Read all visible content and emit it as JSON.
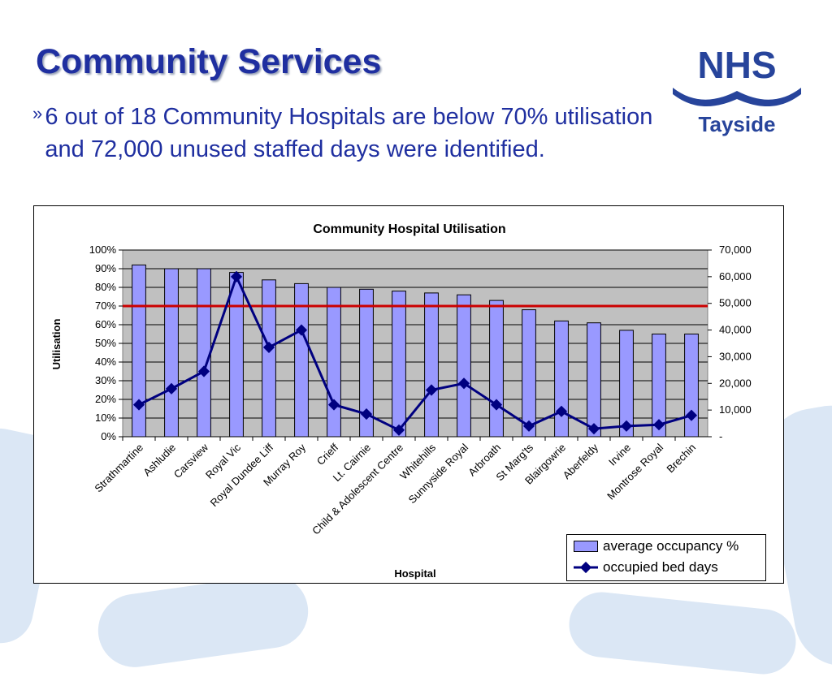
{
  "slide": {
    "title": "Community Services",
    "bullet_mark": "»",
    "bullet": "6 out of 18 Community Hospitals are below 70% utilisation and 72,000 unused staffed days were identified.",
    "logo_top": "NHS",
    "logo_bottom": "Tayside"
  },
  "colors": {
    "title": "#1f2fa0",
    "bars": "#9999ff",
    "line": "#000080",
    "threshold": "#cc0000",
    "plot_bg": "#c0c0c0",
    "logo": "#27449b"
  },
  "chart_data": {
    "type": "bar",
    "title": "Community Hospital Utilisation",
    "xlabel": "Hospital",
    "ylabel": "Utilisation",
    "categories": [
      "Strathmartine",
      "Ashludie",
      "Carsview",
      "Royal Vic",
      "Royal Dundee Liff",
      "Murray Roy",
      "Crieff",
      "Lt. Cairnie",
      "Child & Adolescent Centre",
      "Whitehills",
      "Sunnyside Royal",
      "Arbroath",
      "St Marg'ts",
      "Blairgowrie",
      "Aberfeldy",
      "Irvine",
      "Montrose Royal",
      "Brechin"
    ],
    "series": [
      {
        "name": "average occupancy %",
        "type": "bar",
        "axis": "left",
        "values": [
          92,
          90,
          90,
          88,
          84,
          82,
          80,
          79,
          78,
          77,
          76,
          73,
          68,
          62,
          61,
          57,
          55,
          55
        ]
      },
      {
        "name": "occupied bed days",
        "type": "line",
        "axis": "right",
        "values": [
          12000,
          18000,
          24500,
          60000,
          33500,
          40000,
          12000,
          8500,
          2500,
          17500,
          20000,
          12000,
          4000,
          9500,
          3000,
          4000,
          4500,
          8000
        ]
      }
    ],
    "threshold": 70,
    "ylim": [
      0,
      100
    ],
    "y2lim": [
      0,
      70000
    ],
    "yticks": [
      "0%",
      "10%",
      "20%",
      "30%",
      "40%",
      "50%",
      "60%",
      "70%",
      "80%",
      "90%",
      "100%"
    ],
    "y2ticks": [
      "-",
      "10,000",
      "20,000",
      "30,000",
      "40,000",
      "50,000",
      "60,000",
      "70,000"
    ],
    "grid": true,
    "legend": "bottom-right"
  }
}
